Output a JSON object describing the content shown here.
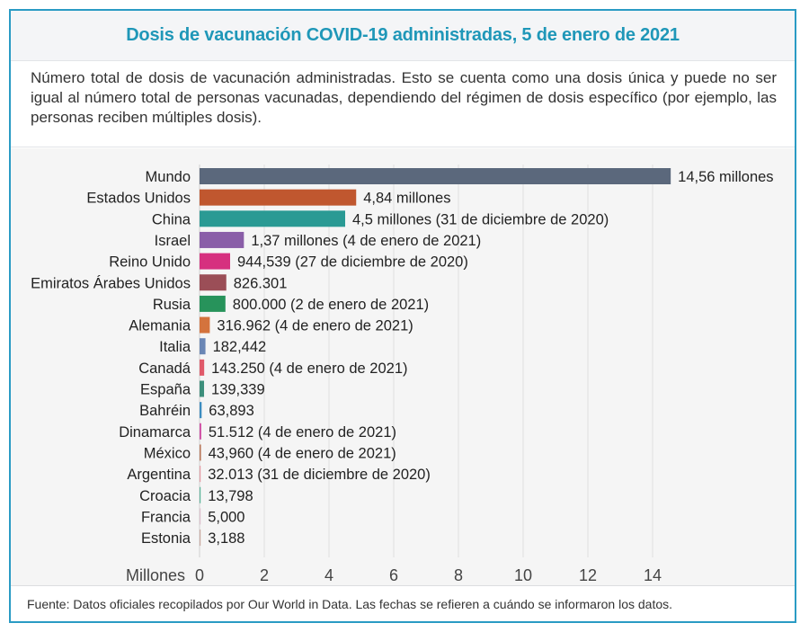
{
  "header": {
    "title": "Dosis de vacunación COVID-19 administradas, 5 de enero de 2021"
  },
  "description": "Número total de dosis de vacunación administradas. Esto se cuenta como una dosis única y puede no ser igual al número total de personas vacunadas, dependiendo del régimen de dosis específico (por ejemplo, las personas reciben múltiples dosis).",
  "footer": {
    "source": "Fuente: Datos oficiales recopilados por Our World in Data. Las fechas se refieren a cuándo se informaron los datos."
  },
  "chart_data": {
    "type": "bar",
    "orientation": "horizontal",
    "title": "Dosis de vacunación COVID-19 administradas, 5 de enero de 2021",
    "xlabel": "Millones",
    "ylabel": "",
    "xlim": [
      0,
      14.56
    ],
    "xticks": [
      0,
      2,
      4,
      6,
      8,
      10,
      12,
      14
    ],
    "xtick_labels": [
      "0",
      "2",
      "4",
      "6",
      "8",
      "10",
      "12",
      "14"
    ],
    "grid": true,
    "categories": [
      "Mundo",
      "Estados Unidos",
      "China",
      "Israel",
      "Reino Unido",
      "Emiratos Árabes Unidos",
      "Rusia",
      "Alemania",
      "Italia",
      "Canadá",
      "España",
      "Bahréin",
      "Dinamarca",
      "México",
      "Argentina",
      "Croacia",
      "Francia",
      "Estonia"
    ],
    "values": [
      14.56,
      4.84,
      4.5,
      1.37,
      0.944539,
      0.826301,
      0.8,
      0.316962,
      0.182442,
      0.14325,
      0.139339,
      0.063893,
      0.051512,
      0.04396,
      0.032013,
      0.013798,
      0.005,
      0.003188
    ],
    "data_labels": [
      "14,56 millones",
      "4,84 millones",
      "4,5 millones (31 de diciembre de 2020)",
      "1,37 millones (4 de enero de 2021)",
      "944,539 (27 de diciembre de 2020)",
      "826.301",
      "800.000 (2 de enero de 2021)",
      "316.962 (4 de enero de 2021)",
      "182,442",
      "143.250 (4 de enero de 2021)",
      "139,339",
      "63,893",
      "51.512 (4 de enero de 2021)",
      "43,960 (4 de enero de 2021)",
      "32.013 (31 de diciembre de 2020)",
      "13,798",
      "5,000",
      "3,188"
    ],
    "colors": [
      "#5b687c",
      "#c0572f",
      "#2a9a94",
      "#8a5ea8",
      "#d6307f",
      "#9b4e57",
      "#27935b",
      "#d4733d",
      "#6a86b5",
      "#e05a6a",
      "#3d8f7c",
      "#3b8cc0",
      "#cf4aa3",
      "#b8775a",
      "#e39aa3",
      "#5bb39a",
      "#dcc0cc",
      "#c9a9a0"
    ]
  }
}
